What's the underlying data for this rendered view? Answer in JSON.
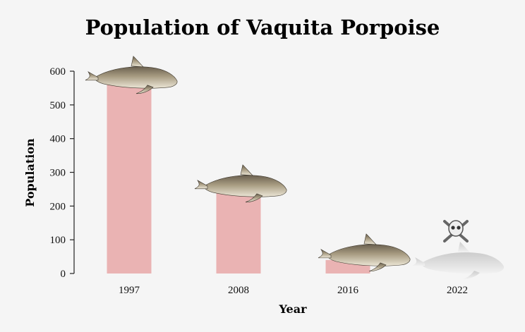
{
  "chart_data": {
    "type": "bar",
    "title": "Population of Vaquita Porpoise",
    "xlabel": "Year",
    "ylabel": "Population",
    "categories": [
      "1997",
      "2008",
      "2016",
      "2022"
    ],
    "values": [
      567,
      245,
      40,
      10
    ],
    "ylim": [
      0,
      600
    ],
    "yticks": [
      0,
      100,
      200,
      300,
      400,
      500,
      600
    ],
    "grid": false,
    "bar_color": "#eab3b3",
    "markers": [
      "vaquita-porpoise",
      "vaquita-porpoise",
      "vaquita-porpoise",
      "faded-vaquita-porpoise-with-skull"
    ]
  }
}
